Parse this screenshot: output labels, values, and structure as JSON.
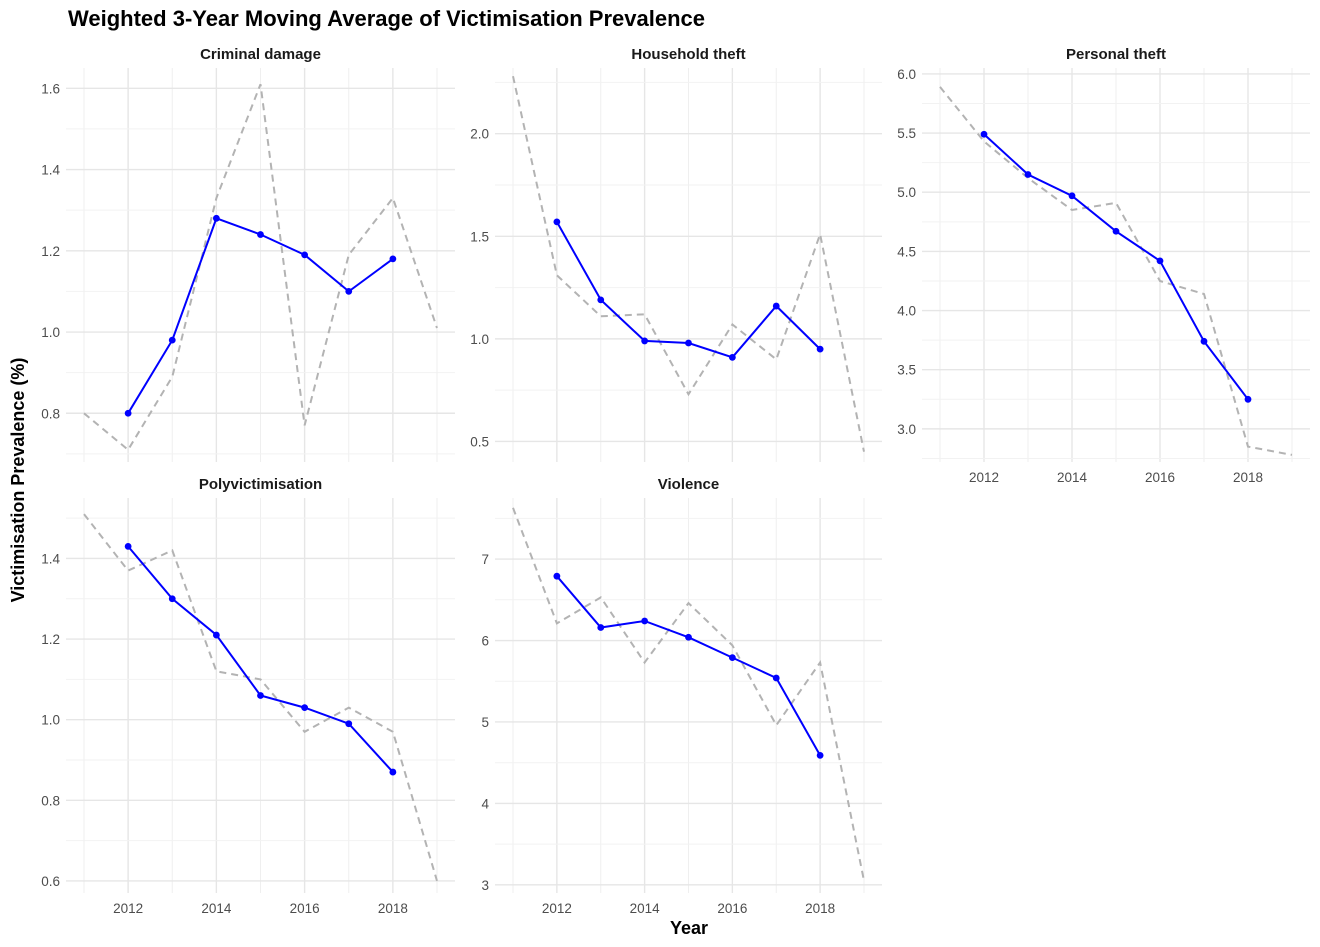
{
  "chart_data": {
    "type": "line",
    "title": "Weighted 3-Year Moving Average of Victimisation Prevalence",
    "xlabel": "Year",
    "ylabel": "Victimisation Prevalence (%)",
    "x_ticks": [
      2012,
      2014,
      2016,
      2018
    ],
    "xlim": [
      2011,
      2019
    ],
    "grid": true,
    "colors": {
      "moving_average": "#0000ff",
      "annual": "#b3b3b3"
    },
    "panels": [
      {
        "name": "Criminal damage",
        "ylim": [
          0.68,
          1.65
        ],
        "y_ticks": [
          0.8,
          1.0,
          1.2,
          1.4,
          1.6
        ],
        "y_tick_labels": [
          "0.8",
          "1.0",
          "1.2",
          "1.4",
          "1.6"
        ],
        "series": [
          {
            "style": "dashed",
            "x": [
              2011,
              2012,
              2013,
              2014,
              2015,
              2016,
              2017,
              2018,
              2019
            ],
            "values": [
              0.8,
              0.71,
              0.89,
              1.33,
              1.61,
              0.77,
              1.19,
              1.33,
              1.01
            ]
          },
          {
            "style": "solid",
            "x": [
              2012,
              2013,
              2014,
              2015,
              2016,
              2017,
              2018
            ],
            "values": [
              0.8,
              0.98,
              1.28,
              1.24,
              1.19,
              1.1,
              1.18
            ]
          }
        ]
      },
      {
        "name": "Household theft",
        "ylim": [
          0.4,
          2.32
        ],
        "y_ticks": [
          0.5,
          1.0,
          1.5,
          2.0
        ],
        "y_tick_labels": [
          "0.5",
          "1.0",
          "1.5",
          "2.0"
        ],
        "series": [
          {
            "style": "dashed",
            "x": [
              2011,
              2012,
              2013,
              2014,
              2015,
              2016,
              2017,
              2018,
              2019
            ],
            "values": [
              2.28,
              1.31,
              1.11,
              1.12,
              0.73,
              1.07,
              0.9,
              1.51,
              0.45
            ]
          },
          {
            "style": "solid",
            "x": [
              2012,
              2013,
              2014,
              2015,
              2016,
              2017,
              2018
            ],
            "values": [
              1.57,
              1.19,
              0.99,
              0.98,
              0.91,
              1.16,
              0.95
            ]
          }
        ]
      },
      {
        "name": "Personal theft",
        "ylim": [
          2.72,
          6.05
        ],
        "y_ticks": [
          3.0,
          3.5,
          4.0,
          4.5,
          5.0,
          5.5,
          6.0
        ],
        "y_tick_labels": [
          "3.0",
          "3.5",
          "4.0",
          "4.5",
          "5.0",
          "5.5",
          "6.0"
        ],
        "series": [
          {
            "style": "dashed",
            "x": [
              2011,
              2012,
              2013,
              2014,
              2015,
              2016,
              2017,
              2018,
              2019
            ],
            "values": [
              5.89,
              5.43,
              5.12,
              4.85,
              4.91,
              4.25,
              4.14,
              2.85,
              2.78
            ]
          },
          {
            "style": "solid",
            "x": [
              2012,
              2013,
              2014,
              2015,
              2016,
              2017,
              2018
            ],
            "values": [
              5.49,
              5.15,
              4.97,
              4.67,
              4.42,
              3.74,
              3.25
            ]
          }
        ]
      },
      {
        "name": "Polyvictimisation",
        "ylim": [
          0.57,
          1.55
        ],
        "y_ticks": [
          0.6,
          0.8,
          1.0,
          1.2,
          1.4
        ],
        "y_tick_labels": [
          "0.6",
          "0.8",
          "1.0",
          "1.2",
          "1.4"
        ],
        "series": [
          {
            "style": "dashed",
            "x": [
              2011,
              2012,
              2013,
              2014,
              2015,
              2016,
              2017,
              2018,
              2019
            ],
            "values": [
              1.51,
              1.37,
              1.42,
              1.12,
              1.1,
              0.97,
              1.03,
              0.97,
              0.6
            ]
          },
          {
            "style": "solid",
            "x": [
              2012,
              2013,
              2014,
              2015,
              2016,
              2017,
              2018
            ],
            "values": [
              1.43,
              1.3,
              1.21,
              1.06,
              1.03,
              0.99,
              0.87
            ]
          }
        ]
      },
      {
        "name": "Violence",
        "ylim": [
          2.9,
          7.75
        ],
        "y_ticks": [
          3,
          4,
          5,
          6,
          7
        ],
        "y_tick_labels": [
          "3",
          "4",
          "5",
          "6",
          "7"
        ],
        "series": [
          {
            "style": "dashed",
            "x": [
              2011,
              2012,
              2013,
              2014,
              2015,
              2016,
              2017,
              2018,
              2019
            ],
            "values": [
              7.63,
              6.21,
              6.53,
              5.73,
              6.46,
              5.94,
              4.96,
              5.73,
              3.05
            ]
          },
          {
            "style": "solid",
            "x": [
              2012,
              2013,
              2014,
              2015,
              2016,
              2017,
              2018
            ],
            "values": [
              6.79,
              6.16,
              6.24,
              6.04,
              5.79,
              5.54,
              4.59
            ]
          }
        ]
      }
    ]
  }
}
